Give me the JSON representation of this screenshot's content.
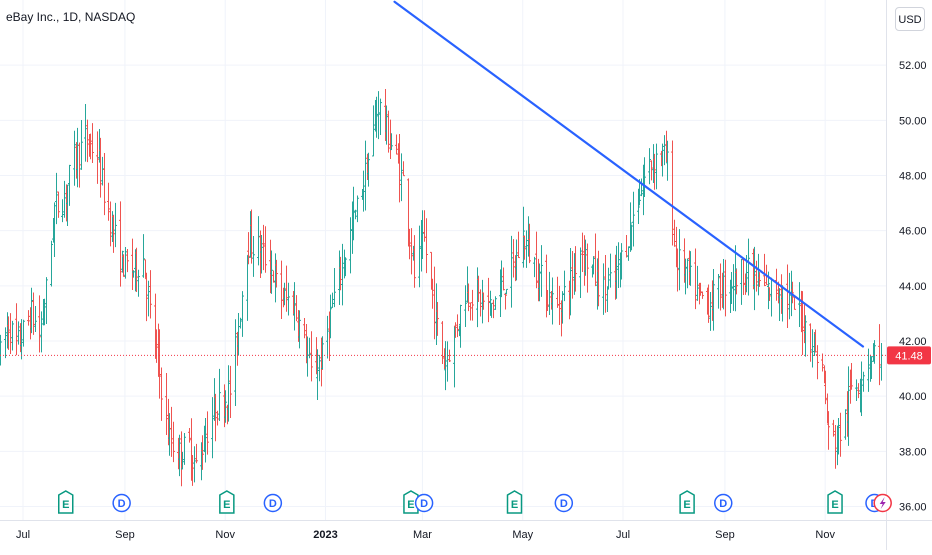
{
  "header": {
    "title": "eBay Inc., 1D, NASDAQ",
    "currency_label": "USD"
  },
  "colors": {
    "up": "#26a69a",
    "down": "#ef5350",
    "trendline": "#2962ff",
    "last_price": "#f23645",
    "earnings": "#089981",
    "dividend": "#2962ff",
    "split": "#9c27b0",
    "axis_text": "#131722",
    "grid": "#f0f3fa"
  },
  "chart_data": {
    "type": "ohlc",
    "series_seed_note": "",
    "y_ticks": [
      "36.00",
      "38.00",
      "40.00",
      "42.00",
      "44.00",
      "46.00",
      "48.00",
      "50.00",
      "52.00"
    ],
    "ylim": [
      35.8,
      54.0
    ],
    "x_ticks": [
      "Jul",
      "Sep",
      "Nov",
      "2023",
      "Mar",
      "May",
      "Jul",
      "Sep",
      "Nov"
    ],
    "x_tick_dates": [
      "2022-07-01",
      "2022-09-01",
      "2022-11-01",
      "2023-01-01",
      "2023-03-01",
      "2023-05-01",
      "2023-07-01",
      "2023-09-01",
      "2023-11-01"
    ],
    "xlim": [
      "2022-06-17",
      "2023-12-08"
    ],
    "last_price": 41.48,
    "last_price_label": "41.48",
    "trendline": {
      "start": [
        "2023-02-12",
        54.3
      ],
      "end": [
        "2023-11-24",
        41.8
      ]
    },
    "price_path": [
      [
        "2022-06-17",
        41.5
      ],
      [
        "2022-06-22",
        42.6
      ],
      [
        "2022-06-27",
        41.8
      ],
      [
        "2022-07-01",
        42.3
      ],
      [
        "2022-07-06",
        43.0
      ],
      [
        "2022-07-11",
        42.2
      ],
      [
        "2022-07-15",
        43.8
      ],
      [
        "2022-07-20",
        46.8
      ],
      [
        "2022-07-26",
        47.2
      ],
      [
        "2022-08-01",
        48.6
      ],
      [
        "2022-08-08",
        49.3
      ],
      [
        "2022-08-15",
        48.8
      ],
      [
        "2022-08-19",
        47.4
      ],
      [
        "2022-08-24",
        46.2
      ],
      [
        "2022-08-30",
        44.8
      ],
      [
        "2022-09-06",
        44.6
      ],
      [
        "2022-09-12",
        45.0
      ],
      [
        "2022-09-16",
        43.0
      ],
      [
        "2022-09-22",
        40.8
      ],
      [
        "2022-09-27",
        38.6
      ],
      [
        "2022-10-03",
        37.9
      ],
      [
        "2022-10-10",
        38.2
      ],
      [
        "2022-10-14",
        37.4
      ],
      [
        "2022-10-20",
        38.6
      ],
      [
        "2022-10-26",
        39.6
      ],
      [
        "2022-10-31",
        39.9
      ],
      [
        "2022-11-04",
        40.2
      ],
      [
        "2022-11-09",
        42.6
      ],
      [
        "2022-11-14",
        45.6
      ],
      [
        "2022-11-21",
        45.4
      ],
      [
        "2022-11-29",
        44.6
      ],
      [
        "2022-12-05",
        43.6
      ],
      [
        "2022-12-12",
        43.4
      ],
      [
        "2022-12-19",
        42.0
      ],
      [
        "2022-12-23",
        40.8
      ],
      [
        "2022-12-30",
        41.4
      ],
      [
        "2023-01-06",
        43.6
      ],
      [
        "2023-01-13",
        45.2
      ],
      [
        "2023-01-20",
        46.8
      ],
      [
        "2023-01-27",
        48.6
      ],
      [
        "2023-02-02",
        50.6
      ],
      [
        "2023-02-07",
        49.6
      ],
      [
        "2023-02-13",
        48.6
      ],
      [
        "2023-02-17",
        47.8
      ],
      [
        "2023-02-24",
        44.4
      ],
      [
        "2023-03-02",
        45.6
      ],
      [
        "2023-03-08",
        43.2
      ],
      [
        "2023-03-14",
        41.2
      ],
      [
        "2023-03-20",
        42.2
      ],
      [
        "2023-03-27",
        43.8
      ],
      [
        "2023-04-03",
        43.6
      ],
      [
        "2023-04-11",
        43.2
      ],
      [
        "2023-04-17",
        43.8
      ],
      [
        "2023-04-25",
        44.6
      ],
      [
        "2023-05-01",
        45.8
      ],
      [
        "2023-05-08",
        44.8
      ],
      [
        "2023-05-15",
        43.8
      ],
      [
        "2023-05-22",
        43.2
      ],
      [
        "2023-05-30",
        44.2
      ],
      [
        "2023-06-05",
        45.4
      ],
      [
        "2023-06-12",
        44.6
      ],
      [
        "2023-06-19",
        43.8
      ],
      [
        "2023-06-26",
        44.2
      ],
      [
        "2023-07-03",
        45.6
      ],
      [
        "2023-07-10",
        47.2
      ],
      [
        "2023-07-17",
        48.4
      ],
      [
        "2023-07-24",
        48.9
      ],
      [
        "2023-07-28",
        48.4
      ],
      [
        "2023-08-02",
        45.0
      ],
      [
        "2023-08-09",
        44.4
      ],
      [
        "2023-08-16",
        43.6
      ],
      [
        "2023-08-23",
        43.4
      ],
      [
        "2023-08-30",
        44.0
      ],
      [
        "2023-09-06",
        44.2
      ],
      [
        "2023-09-13",
        44.6
      ],
      [
        "2023-09-20",
        44.2
      ],
      [
        "2023-09-27",
        43.8
      ],
      [
        "2023-10-04",
        44.0
      ],
      [
        "2023-10-11",
        43.4
      ],
      [
        "2023-10-18",
        42.8
      ],
      [
        "2023-10-24",
        42.0
      ],
      [
        "2023-10-30",
        41.0
      ],
      [
        "2023-11-03",
        38.6
      ],
      [
        "2023-11-08",
        38.4
      ],
      [
        "2023-11-13",
        39.2
      ],
      [
        "2023-11-17",
        40.4
      ],
      [
        "2023-11-22",
        40.6
      ],
      [
        "2023-11-27",
        41.4
      ],
      [
        "2023-12-01",
        41.6
      ],
      [
        "2023-12-05",
        41.48
      ]
    ],
    "event_markers": [
      {
        "label": "E",
        "kind": "earnings",
        "date": "2022-07-27"
      },
      {
        "label": "D",
        "kind": "dividend",
        "date": "2022-08-30"
      },
      {
        "label": "E",
        "kind": "earnings",
        "date": "2022-11-02"
      },
      {
        "label": "D",
        "kind": "dividend",
        "date": "2022-11-30"
      },
      {
        "label": "E",
        "kind": "earnings",
        "date": "2023-02-22"
      },
      {
        "label": "D",
        "kind": "dividend",
        "date": "2023-03-02"
      },
      {
        "label": "E",
        "kind": "earnings",
        "date": "2023-04-26"
      },
      {
        "label": "D",
        "kind": "dividend",
        "date": "2023-05-26"
      },
      {
        "label": "E",
        "kind": "earnings",
        "date": "2023-08-09"
      },
      {
        "label": "D",
        "kind": "dividend",
        "date": "2023-08-31"
      },
      {
        "label": "E",
        "kind": "earnings",
        "date": "2023-11-07"
      },
      {
        "label": "D",
        "kind": "dividend",
        "date": "2023-12-01"
      },
      {
        "label": "",
        "kind": "split",
        "date": "2023-12-06"
      }
    ]
  }
}
